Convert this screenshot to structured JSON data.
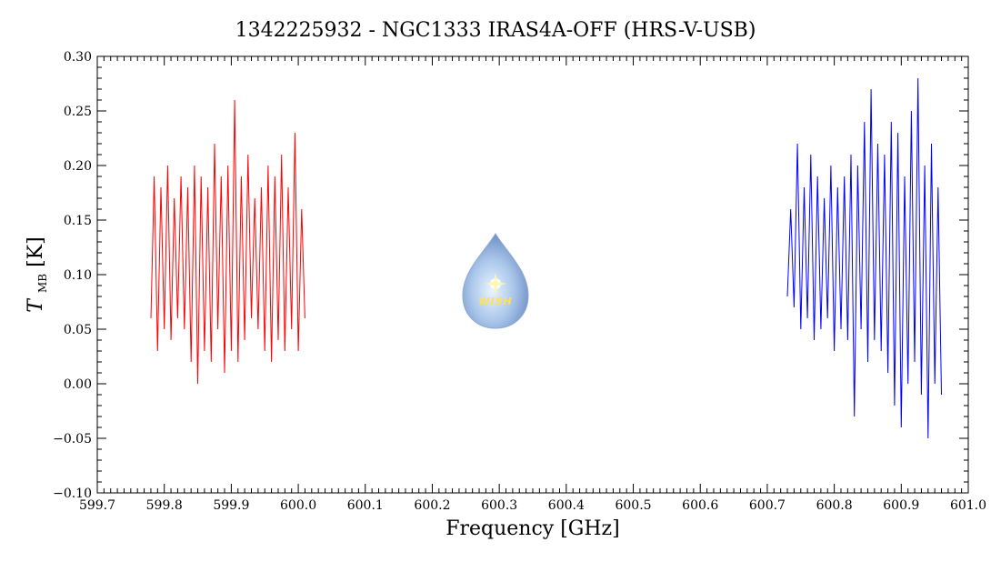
{
  "chart_data": {
    "type": "line",
    "title": "1342225932 - NGC1333 IRAS4A-OFF (HRS-V-USB)",
    "xlabel": "Frequency [GHz]",
    "ylabel_main": "T",
    "ylabel_sub": "MB",
    "ylabel_unit": "[K]",
    "xlim": [
      599.7,
      601.0
    ],
    "ylim": [
      -0.1,
      0.3
    ],
    "x_ticks": [
      "599.7",
      "599.8",
      "599.9",
      "600.0",
      "600.1",
      "600.2",
      "600.3",
      "600.4",
      "600.5",
      "600.6",
      "600.7",
      "600.8",
      "600.9",
      "601.0"
    ],
    "y_ticks": [
      "−0.10",
      "−0.05",
      "0.00",
      "0.05",
      "0.10",
      "0.15",
      "0.20",
      "0.25",
      "0.30"
    ],
    "grid": false,
    "series": [
      {
        "color": "#ff0000",
        "x": [
          599.78,
          599.785,
          599.79,
          599.795,
          599.8,
          599.805,
          599.81,
          599.815,
          599.82,
          599.825,
          599.83,
          599.835,
          599.84,
          599.845,
          599.85,
          599.855,
          599.86,
          599.865,
          599.87,
          599.875,
          599.88,
          599.885,
          599.89,
          599.895,
          599.9,
          599.905,
          599.91,
          599.915,
          599.92,
          599.925,
          599.93,
          599.935,
          599.94,
          599.945,
          599.95,
          599.955,
          599.96,
          599.965,
          599.97,
          599.975,
          599.98,
          599.985,
          599.99,
          599.995,
          600.0,
          600.005,
          600.01
        ],
        "y": [
          0.06,
          0.19,
          0.03,
          0.18,
          0.05,
          0.2,
          0.04,
          0.17,
          0.06,
          0.19,
          0.05,
          0.18,
          0.02,
          0.2,
          0.0,
          0.19,
          0.03,
          0.18,
          0.02,
          0.22,
          0.05,
          0.19,
          0.01,
          0.2,
          0.03,
          0.26,
          0.02,
          0.19,
          0.04,
          0.21,
          0.06,
          0.17,
          0.05,
          0.18,
          0.03,
          0.2,
          0.02,
          0.19,
          0.04,
          0.21,
          0.03,
          0.18,
          0.05,
          0.23,
          0.03,
          0.16,
          0.06
        ]
      },
      {
        "color": "#0000ff",
        "x": [
          600.73,
          600.735,
          600.74,
          600.745,
          600.75,
          600.755,
          600.76,
          600.765,
          600.77,
          600.775,
          600.78,
          600.785,
          600.79,
          600.795,
          600.8,
          600.805,
          600.81,
          600.815,
          600.82,
          600.825,
          600.83,
          600.835,
          600.84,
          600.845,
          600.85,
          600.855,
          600.86,
          600.865,
          600.87,
          600.875,
          600.88,
          600.885,
          600.89,
          600.895,
          600.9,
          600.905,
          600.91,
          600.915,
          600.92,
          600.925,
          600.93,
          600.935,
          600.94,
          600.945,
          600.95,
          600.955,
          600.96
        ],
        "y": [
          0.08,
          0.16,
          0.07,
          0.22,
          0.05,
          0.18,
          0.06,
          0.21,
          0.04,
          0.19,
          0.05,
          0.17,
          0.06,
          0.2,
          0.03,
          0.18,
          0.05,
          0.19,
          0.04,
          0.21,
          -0.03,
          0.2,
          0.05,
          0.24,
          0.02,
          0.27,
          0.04,
          0.22,
          0.03,
          0.21,
          0.01,
          0.24,
          -0.02,
          0.23,
          -0.04,
          0.19,
          0.0,
          0.25,
          0.02,
          0.28,
          -0.01,
          0.2,
          -0.05,
          0.22,
          0.0,
          0.18,
          -0.01
        ]
      }
    ]
  },
  "logo": {
    "text": "WISH"
  }
}
